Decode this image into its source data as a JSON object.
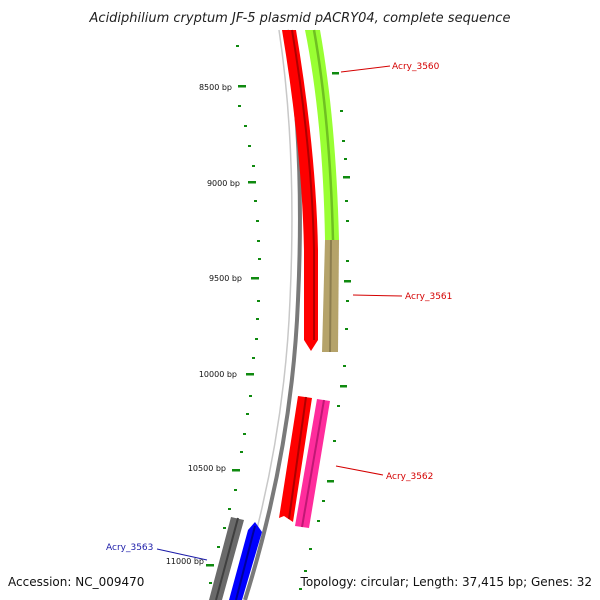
{
  "title": "Acidiphilium cryptum JF-5 plasmid pACRY04, complete sequence",
  "accession": "Accession: NC_009470",
  "summary": "Topology: circular; Length: 37,415 bp; Genes: 32",
  "bp_ticks": [
    {
      "label": "8500 bp"
    },
    {
      "label": "9000 bp"
    },
    {
      "label": "9500 bp"
    },
    {
      "label": "10000 bp"
    },
    {
      "label": "10500 bp"
    },
    {
      "label": "11000 bp"
    }
  ],
  "gene_labels": [
    {
      "name": "Acry_3560",
      "color": "#d40000"
    },
    {
      "name": "Acry_3561",
      "color": "#d40000"
    },
    {
      "name": "Acry_3562",
      "color": "#d40000"
    },
    {
      "name": "Acry_3563",
      "color": "#1a1aa8"
    }
  ],
  "colors": {
    "backbone": "#808080",
    "ruler": "#0f8a0f",
    "red_feature": "#ff0000",
    "green_feature": "#99ff33",
    "tan_feature": "#b5a36a",
    "pink_feature": "#ff2c9c",
    "blue_feature": "#0000ff",
    "gray_feature": "#6a6a6a"
  }
}
